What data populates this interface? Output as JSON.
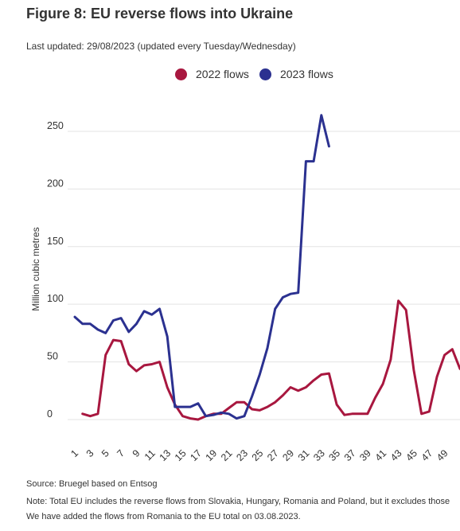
{
  "chart_data": {
    "type": "line",
    "title": "Figure 8: EU reverse flows into Ukraine",
    "subtitle": "Last updated: 29/08/2023 (updated every Tuesday/Wednesday)",
    "ylabel": "Million cubic metres",
    "x": [
      1,
      2,
      3,
      4,
      5,
      6,
      7,
      8,
      9,
      10,
      11,
      12,
      13,
      14,
      15,
      16,
      17,
      18,
      19,
      20,
      21,
      22,
      23,
      24,
      25,
      26,
      27,
      28,
      29,
      30,
      31,
      32,
      33,
      34,
      35,
      36,
      37,
      38,
      39,
      40,
      41,
      42,
      43,
      44,
      45,
      46,
      47,
      48,
      49,
      50,
      51
    ],
    "xlim": [
      1,
      51
    ],
    "ylim": [
      0,
      270
    ],
    "x_ticks": [
      1,
      3,
      5,
      7,
      9,
      11,
      13,
      15,
      17,
      19,
      21,
      23,
      25,
      27,
      29,
      31,
      33,
      35,
      37,
      39,
      41,
      43,
      45,
      47,
      49
    ],
    "y_ticks": [
      0,
      50,
      100,
      150,
      200,
      250
    ],
    "grid": true,
    "grid_color": "#e3e3e3",
    "legend_position": "top-center",
    "series": [
      {
        "name": "2022 flows",
        "color": "#a8173f",
        "values": [
          null,
          5,
          3,
          5,
          56,
          69,
          68,
          48,
          42,
          47,
          48,
          50,
          28,
          13,
          3,
          1,
          0,
          3,
          5,
          5,
          10,
          15,
          15,
          9,
          8,
          11,
          15,
          21,
          28,
          25,
          28,
          34,
          39,
          40,
          13,
          4,
          5,
          5,
          5,
          19,
          31,
          52,
          103,
          95,
          43,
          5,
          7,
          37,
          56,
          61,
          44
        ]
      },
      {
        "name": "2023 flows",
        "color": "#2b3190",
        "values": [
          89,
          83,
          83,
          78,
          75,
          86,
          88,
          76,
          83,
          94,
          91,
          96,
          72,
          11,
          11,
          11,
          14,
          3,
          4,
          6,
          5,
          1,
          3,
          20,
          39,
          62,
          96,
          106,
          109,
          110,
          224,
          224,
          264,
          237,
          null,
          null,
          null,
          null,
          null,
          null,
          null,
          null,
          null,
          null,
          null,
          null,
          null,
          null,
          null,
          null,
          null
        ]
      }
    ]
  },
  "footer": {
    "source": "Source: Bruegel based on Entsog",
    "note_line_1": "Note: Total EU includes the reverse flows from Slovakia, Hungary, Romania and Poland, but it excludes those",
    "note_line_2": "We have added the flows from Romania to the EU total on 03.08.2023."
  }
}
